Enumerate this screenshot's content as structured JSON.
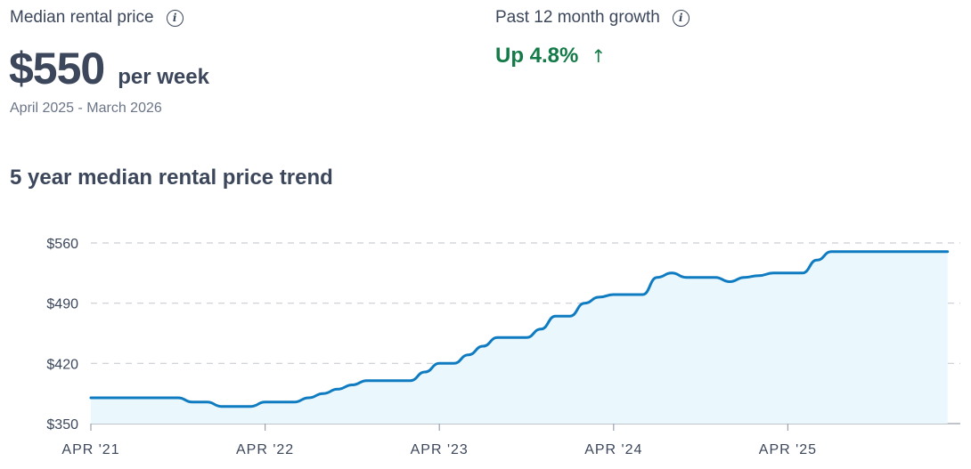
{
  "summary": {
    "median_label": "Median rental price",
    "price_value": "$550",
    "price_unit": "per week",
    "period": "April 2025 - March 2026",
    "growth_label": "Past 12 month growth",
    "growth_value": "Up 4.8%"
  },
  "icons": {
    "info": "info-icon",
    "growth_arrow": "arrow-up-icon"
  },
  "colors": {
    "growth": "#147a48",
    "line": "#0f7bc0",
    "area": "#eaf7fd"
  },
  "chart_data": {
    "type": "area",
    "title": "5 year median rental price trend",
    "ylim": [
      350,
      560
    ],
    "yticks": [
      350,
      420,
      490,
      560
    ],
    "ytick_labels": [
      "$350",
      "$420",
      "$490",
      "$560"
    ],
    "xticks": [
      "2021-04",
      "2022-04",
      "2023-04",
      "2024-04",
      "2025-04"
    ],
    "xtick_labels": [
      "APR '21",
      "APR '22",
      "APR '23",
      "APR '24",
      "APR '25"
    ],
    "xlim": [
      "2021-04",
      "2026-03"
    ],
    "grid": true,
    "series": [
      {
        "x": [
          "2021-04",
          "2021-05",
          "2021-06",
          "2021-07",
          "2021-08",
          "2021-09",
          "2021-10",
          "2021-11",
          "2021-12",
          "2022-01",
          "2022-02",
          "2022-03",
          "2022-04",
          "2022-05",
          "2022-06",
          "2022-07",
          "2022-08",
          "2022-09",
          "2022-10",
          "2022-11",
          "2022-12",
          "2023-01",
          "2023-02",
          "2023-03",
          "2023-04",
          "2023-05",
          "2023-06",
          "2023-07",
          "2023-08",
          "2023-09",
          "2023-10",
          "2023-11",
          "2023-12",
          "2024-01",
          "2024-02",
          "2024-03",
          "2024-04",
          "2024-05",
          "2024-06",
          "2024-07",
          "2024-08",
          "2024-09",
          "2024-10",
          "2024-11",
          "2024-12",
          "2025-01",
          "2025-02",
          "2025-03",
          "2025-04",
          "2025-05",
          "2025-06",
          "2025-07",
          "2025-08",
          "2025-09",
          "2025-10",
          "2025-11",
          "2025-12",
          "2026-01",
          "2026-02",
          "2026-03"
        ],
        "values": [
          380,
          380,
          380,
          380,
          380,
          380,
          380,
          375,
          375,
          370,
          370,
          370,
          375,
          375,
          375,
          380,
          385,
          390,
          395,
          400,
          400,
          400,
          400,
          410,
          420,
          420,
          430,
          440,
          450,
          450,
          450,
          460,
          475,
          475,
          490,
          497,
          500,
          500,
          500,
          520,
          525,
          520,
          520,
          520,
          515,
          520,
          522,
          525,
          525,
          525,
          540,
          550,
          550,
          550,
          550,
          550,
          550,
          550,
          550,
          550
        ]
      }
    ]
  }
}
